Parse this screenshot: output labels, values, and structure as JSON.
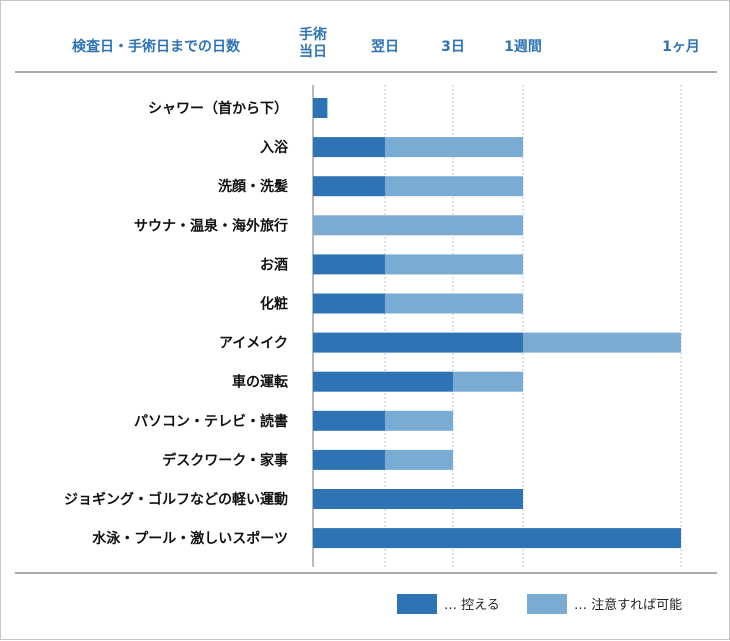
{
  "header": {
    "title": "検査日・手術日までの日数",
    "tick_labels": [
      "手術\n当日",
      "翌日",
      "3日",
      "1週間",
      "1ヶ月"
    ]
  },
  "colors": {
    "avoid": "#2e74b5",
    "caution": "#7aabd3",
    "header_text": "#2e74b5"
  },
  "legend": {
    "avoid_label": "… 控える",
    "caution_label": "… 注意すれば可能"
  },
  "chart_data": {
    "type": "bar",
    "orientation": "horizontal",
    "stacked": true,
    "time_points": [
      "手術当日",
      "翌日",
      "3日",
      "1週間",
      "1ヶ月"
    ],
    "categories": [
      "シャワー（首から下）",
      "入浴",
      "洗顔・洗髪",
      "サウナ・温泉・海外旅行",
      "お酒",
      "化粧",
      "アイメイク",
      "車の運転",
      "パソコン・テレビ・読書",
      "デスクワーク・家事",
      "ジョギング・ゴルフなどの軽い運動",
      "水泳・プール・激しいスポーツ"
    ],
    "series": [
      {
        "name": "控える",
        "segments": [
          [
            0,
            0.2
          ],
          [
            0,
            1
          ],
          [
            0,
            1
          ],
          null,
          [
            0,
            1
          ],
          [
            0,
            1
          ],
          [
            0,
            3
          ],
          [
            0,
            2
          ],
          [
            0,
            1
          ],
          [
            0,
            1
          ],
          [
            0,
            3
          ],
          [
            0,
            4
          ]
        ]
      },
      {
        "name": "注意すれば可能",
        "segments": [
          null,
          [
            1,
            3
          ],
          [
            1,
            3
          ],
          [
            0,
            3
          ],
          [
            1,
            3
          ],
          [
            1,
            3
          ],
          [
            3,
            4
          ],
          [
            2,
            3
          ],
          [
            1,
            2
          ],
          [
            1,
            2
          ],
          null,
          null
        ]
      }
    ],
    "grid": true,
    "legend_position": "bottom-right"
  }
}
